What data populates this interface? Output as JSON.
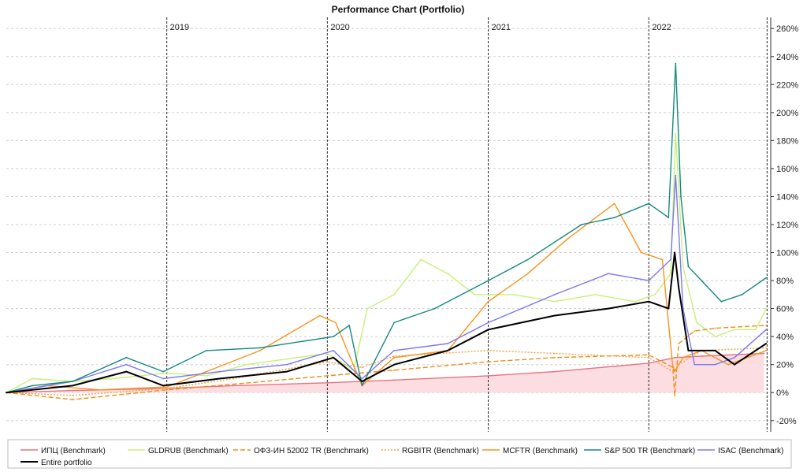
{
  "chart_data": {
    "type": "line",
    "title": "Performance Chart (Portfolio)",
    "xlabel": "",
    "ylabel": "",
    "x_range": [
      "2018-01-01",
      "2022-09-30"
    ],
    "ylim": [
      -28,
      268
    ],
    "y_axis_side": "right",
    "y_ticks": [
      -20,
      0,
      20,
      40,
      60,
      80,
      100,
      120,
      140,
      160,
      180,
      200,
      220,
      240,
      260
    ],
    "y_tick_labels": [
      "-20%",
      "0%",
      "20%",
      "40%",
      "60%",
      "80%",
      "100%",
      "120%",
      "140%",
      "160%",
      "180%",
      "200%",
      "220%",
      "240%",
      "260%"
    ],
    "year_markers": [
      {
        "x": "2019-01-01",
        "label": "2019"
      },
      {
        "x": "2020-01-01",
        "label": "2020"
      },
      {
        "x": "2021-01-01",
        "label": "2021"
      },
      {
        "x": "2022-01-01",
        "label": "2022"
      },
      {
        "x": "2022-09-27",
        "label": ""
      }
    ],
    "grid": true,
    "legend_position": "bottom",
    "series": [
      {
        "name": "ИПЦ (Benchmark)",
        "color": "#e8737f",
        "dash": "solid",
        "fill": "#fbdde2",
        "x": [
          "2018-01-01",
          "2018-06-01",
          "2019-01-01",
          "2019-06-01",
          "2020-01-01",
          "2020-06-01",
          "2021-01-01",
          "2021-06-01",
          "2022-01-01",
          "2022-03-01",
          "2022-05-01",
          "2022-09-20"
        ],
        "y": [
          0,
          1.5,
          3,
          5,
          7,
          9,
          12,
          15,
          21,
          25,
          26,
          28
        ]
      },
      {
        "name": "GLDRUB (Benchmark)",
        "color": "#c8f078",
        "dash": "solid",
        "x": [
          "2018-01-01",
          "2018-03-01",
          "2018-06-01",
          "2018-09-01",
          "2019-01-01",
          "2019-04-01",
          "2019-07-01",
          "2019-10-01",
          "2020-01-01",
          "2020-03-01",
          "2020-04-01",
          "2020-06-01",
          "2020-08-01",
          "2020-10-01",
          "2020-12-01",
          "2021-03-01",
          "2021-06-01",
          "2021-09-01",
          "2021-12-01",
          "2022-01-15",
          "2022-02-20",
          "2022-03-03",
          "2022-03-20",
          "2022-04-20",
          "2022-06-01",
          "2022-07-15",
          "2022-09-01",
          "2022-09-25"
        ],
        "y": [
          0,
          10,
          8,
          10,
          14,
          12,
          20,
          24,
          28,
          16,
          60,
          70,
          95,
          85,
          70,
          70,
          65,
          70,
          65,
          70,
          85,
          185,
          90,
          50,
          40,
          45,
          45,
          60
        ]
      },
      {
        "name": "ОФЗ-ИН 52002 TR (Benchmark)",
        "color": "#f08c14",
        "dash": "longdash",
        "x": [
          "2018-01-01",
          "2018-06-01",
          "2019-01-01",
          "2019-06-01",
          "2020-01-01",
          "2020-06-01",
          "2021-01-01",
          "2021-06-01",
          "2022-01-01",
          "2022-02-25",
          "2022-03-01",
          "2022-03-10",
          "2022-04-15",
          "2022-06-01",
          "2022-09-25"
        ],
        "y": [
          0,
          -5,
          2,
          6,
          12,
          16,
          22,
          25,
          27,
          18,
          -2,
          35,
          44,
          46,
          48
        ]
      },
      {
        "name": "RGBITR (Benchmark)",
        "color": "#f5a040",
        "dash": "dot",
        "x": [
          "2018-01-01",
          "2018-06-01",
          "2019-01-01",
          "2019-06-01",
          "2020-01-01",
          "2020-03-20",
          "2020-06-01",
          "2021-01-01",
          "2021-06-01",
          "2022-01-01",
          "2022-02-25",
          "2022-03-10",
          "2022-05-01",
          "2022-09-25"
        ],
        "y": [
          0,
          -2,
          3,
          10,
          22,
          18,
          26,
          30,
          28,
          25,
          15,
          20,
          30,
          32
        ]
      },
      {
        "name": "MCFTR (Benchmark)",
        "color": "#f7931e",
        "dash": "solid",
        "x": [
          "2018-01-01",
          "2018-04-01",
          "2018-08-01",
          "2019-01-01",
          "2019-04-01",
          "2019-08-01",
          "2019-12-15",
          "2020-01-20",
          "2020-03-20",
          "2020-06-01",
          "2020-10-01",
          "2021-01-01",
          "2021-04-01",
          "2021-07-01",
          "2021-10-15",
          "2021-12-15",
          "2022-02-01",
          "2022-02-24",
          "2022-03-01",
          "2022-03-20",
          "2022-05-01",
          "2022-07-01",
          "2022-09-25"
        ],
        "y": [
          0,
          5,
          2,
          4,
          15,
          30,
          55,
          50,
          5,
          25,
          30,
          65,
          85,
          110,
          135,
          100,
          95,
          20,
          15,
          25,
          30,
          20,
          30
        ]
      },
      {
        "name": "S&P 500 TR (Benchmark)",
        "color": "#138a80",
        "dash": "solid",
        "x": [
          "2018-01-01",
          "2018-03-01",
          "2018-06-01",
          "2018-10-01",
          "2018-12-24",
          "2019-04-01",
          "2019-08-01",
          "2020-01-15",
          "2020-02-20",
          "2020-03-20",
          "2020-06-01",
          "2020-09-01",
          "2021-01-01",
          "2021-04-01",
          "2021-08-01",
          "2021-10-15",
          "2022-01-01",
          "2022-02-15",
          "2022-03-03",
          "2022-03-15",
          "2022-04-01",
          "2022-05-01",
          "2022-06-15",
          "2022-08-01",
          "2022-09-25"
        ],
        "y": [
          0,
          5,
          8,
          25,
          15,
          30,
          32,
          40,
          48,
          5,
          50,
          60,
          80,
          95,
          120,
          125,
          135,
          125,
          235,
          140,
          90,
          80,
          65,
          70,
          82
        ]
      },
      {
        "name": "ISAC (Benchmark)",
        "color": "#7b78f0",
        "dash": "solid",
        "x": [
          "2018-01-01",
          "2018-06-01",
          "2018-10-01",
          "2018-12-24",
          "2019-05-01",
          "2019-10-01",
          "2020-01-15",
          "2020-03-20",
          "2020-06-01",
          "2020-10-01",
          "2021-01-01",
          "2021-06-01",
          "2021-10-01",
          "2022-01-01",
          "2022-02-20",
          "2022-03-03",
          "2022-03-20",
          "2022-04-15",
          "2022-06-01",
          "2022-07-15",
          "2022-09-25"
        ],
        "y": [
          0,
          8,
          20,
          10,
          15,
          20,
          30,
          10,
          30,
          35,
          50,
          70,
          85,
          80,
          95,
          155,
          60,
          20,
          20,
          25,
          45
        ]
      },
      {
        "name": "Entire portfolio",
        "color": "#000000",
        "dash": "solid",
        "width": 2,
        "x": [
          "2018-01-01",
          "2018-06-01",
          "2018-10-01",
          "2018-12-24",
          "2019-05-01",
          "2019-10-01",
          "2020-01-15",
          "2020-03-20",
          "2020-06-01",
          "2020-10-01",
          "2021-01-01",
          "2021-06-01",
          "2021-10-01",
          "2022-01-01",
          "2022-02-15",
          "2022-03-01",
          "2022-03-10",
          "2022-04-01",
          "2022-06-01",
          "2022-07-15",
          "2022-09-25"
        ],
        "y": [
          0,
          5,
          15,
          5,
          10,
          15,
          25,
          8,
          20,
          30,
          45,
          55,
          60,
          65,
          60,
          100,
          75,
          30,
          30,
          20,
          35
        ]
      }
    ]
  }
}
